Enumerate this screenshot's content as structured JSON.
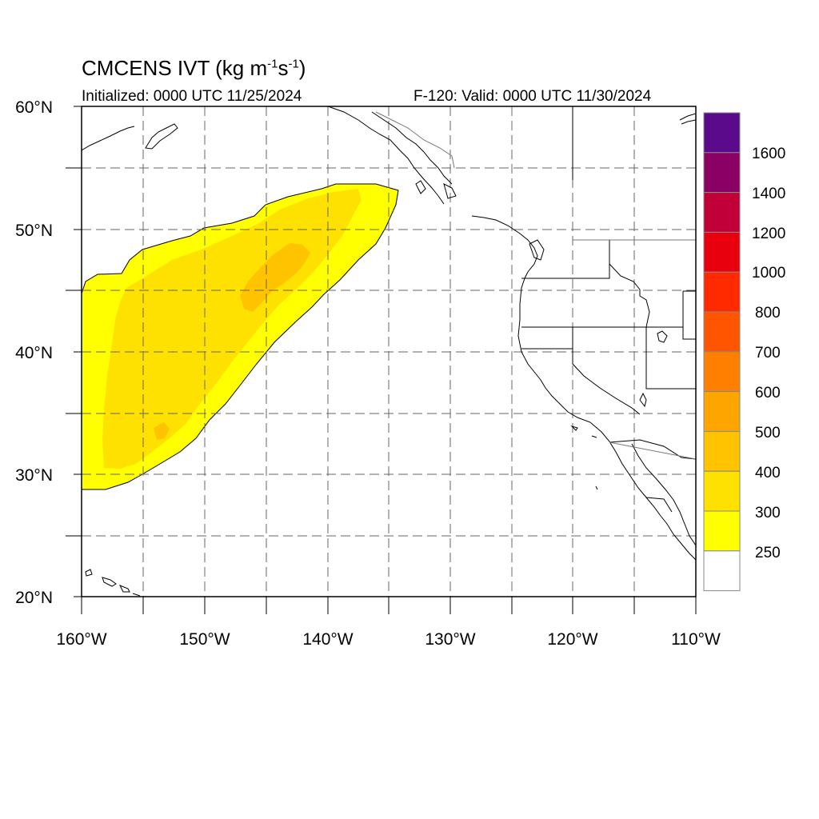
{
  "title": {
    "main": "CMCENS IVT (kg m",
    "sup1": "-1",
    "mid": "s",
    "sup2": "-1",
    "end": ")"
  },
  "subtitle": {
    "initialized": "Initialized: 0000 UTC 11/25/2024",
    "valid": "F-120: Valid: 0000 UTC 11/30/2024"
  },
  "axes": {
    "lat_labels": [
      "60°N",
      "50°N",
      "40°N",
      "30°N",
      "20°N"
    ],
    "lon_labels": [
      "160°W",
      "150°W",
      "140°W",
      "130°W",
      "120°W",
      "110°W"
    ]
  },
  "colorbar": {
    "labels": [
      "1600",
      "1400",
      "1200",
      "1000",
      "800",
      "700",
      "600",
      "500",
      "400",
      "300",
      "250"
    ],
    "colors": [
      "#5b0a8c",
      "#8a0064",
      "#c1003a",
      "#e8000f",
      "#ff2a00",
      "#ff5500",
      "#ff7f00",
      "#ffa500",
      "#ffc300",
      "#ffe100",
      "#ffff00",
      "#ffffff"
    ]
  },
  "legend_colors": {
    "ivt_250_300": "#ffff00",
    "ivt_300_400": "#ffe100",
    "ivt_400_500": "#ffc300"
  }
}
